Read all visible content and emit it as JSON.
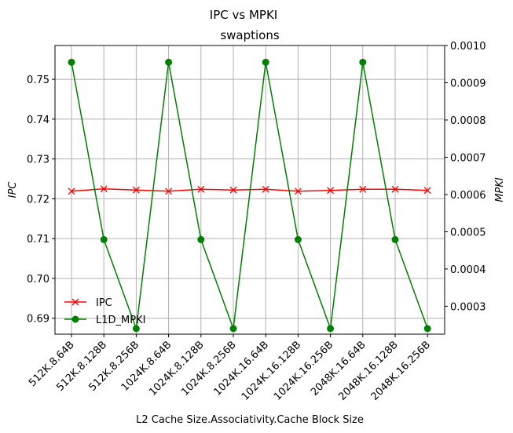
{
  "chart_data": {
    "type": "line",
    "suptitle": "IPC vs MPKI",
    "title": "swaptions",
    "xlabel": "L2 Cache Size.Associativity.Cache Block Size",
    "ylabel": "IPC",
    "y2label": "MPKI",
    "categories": [
      "512K.8.64B",
      "512K.8.128B",
      "512K.8.256B",
      "1024K.8.64B",
      "1024K.8.128B",
      "1024K.8.256B",
      "1024K.16.64B",
      "1024K.16.128B",
      "1024K.16.256B",
      "2048K.16.64B",
      "2048K.16.128B",
      "2048K.16.256B"
    ],
    "ylim": [
      0.686,
      0.7585
    ],
    "y2lim": [
      0.000225,
      0.001
    ],
    "yticks": [
      "0.69",
      "0.70",
      "0.71",
      "0.72",
      "0.73",
      "0.74",
      "0.75"
    ],
    "y2ticks": [
      "0.0003",
      "0.0004",
      "0.0005",
      "0.0006",
      "0.0007",
      "0.0008",
      "0.0009",
      "0.0010"
    ],
    "grid": true,
    "legend_position": "lower-left",
    "series": [
      {
        "name": "IPC",
        "axis": "left",
        "color": "#ff0000",
        "marker": "x",
        "values": [
          0.7219,
          0.7225,
          0.7222,
          0.7219,
          0.7224,
          0.7222,
          0.7224,
          0.7219,
          0.7221,
          0.7224,
          0.7224,
          0.7221
        ]
      },
      {
        "name": "L1D_MPKI",
        "axis": "right",
        "color": "#008000",
        "marker": "o",
        "values": [
          0.000955,
          0.000479,
          0.00024,
          0.000955,
          0.000479,
          0.00024,
          0.000955,
          0.000479,
          0.00024,
          0.000955,
          0.000479,
          0.00024
        ]
      }
    ]
  }
}
